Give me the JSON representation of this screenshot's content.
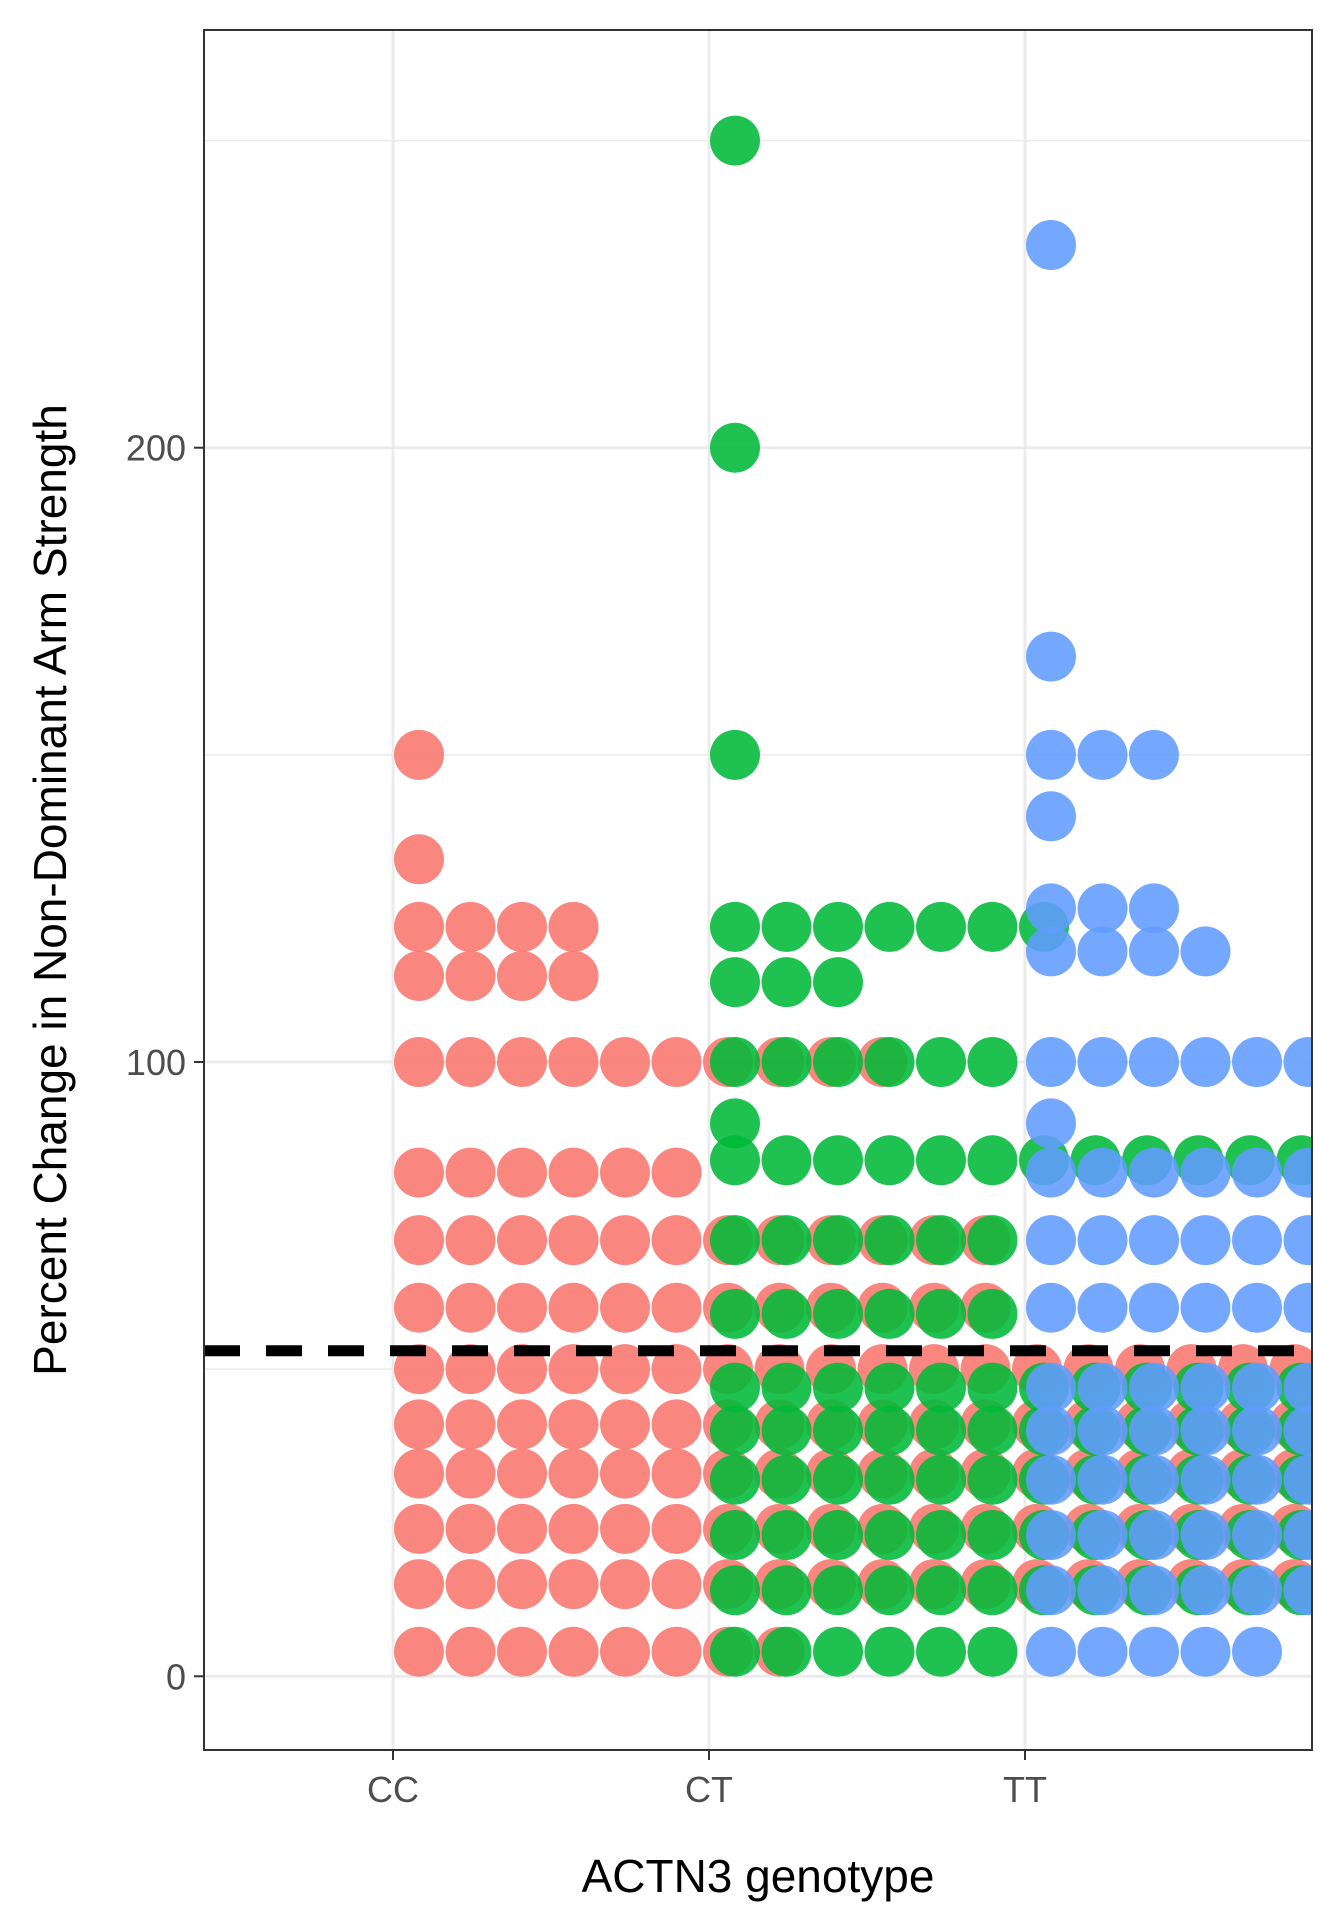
{
  "chart_data": {
    "type": "scatter",
    "subtype": "dotplot",
    "xlabel": "ACTN3 genotype",
    "ylabel": "Percent Change in Non-Dominant Arm Strength",
    "categories": [
      "CC",
      "CT",
      "TT"
    ],
    "yticks": [
      0,
      100,
      200
    ],
    "ylim": [
      -12,
      268
    ],
    "grid": true,
    "reference_line": {
      "y": 53,
      "style": "dashed",
      "color": "#000000"
    },
    "dot_colors": {
      "CC": "#f8766d",
      "CT": "#00ba38",
      "TT": "#619cff"
    },
    "dot_opacity": 0.88,
    "series": [
      {
        "group": "CC",
        "color": "#f8766d",
        "rows": [
          {
            "y": 150,
            "count": 1
          },
          {
            "y": 133,
            "count": 1
          },
          {
            "y": 122,
            "count": 4
          },
          {
            "y": 114,
            "count": 4
          },
          {
            "y": 100,
            "count": 10
          },
          {
            "y": 82,
            "count": 6
          },
          {
            "y": 71,
            "count": 12
          },
          {
            "y": 60,
            "count": 12
          },
          {
            "y": 50,
            "count": 18
          },
          {
            "y": 41,
            "count": 18
          },
          {
            "y": 33,
            "count": 18
          },
          {
            "y": 24,
            "count": 18
          },
          {
            "y": 15,
            "count": 18
          },
          {
            "y": 4,
            "count": 8
          }
        ]
      },
      {
        "group": "CT",
        "color": "#00ba38",
        "rows": [
          {
            "y": 250,
            "count": 1
          },
          {
            "y": 200,
            "count": 1
          },
          {
            "y": 150,
            "count": 1
          },
          {
            "y": 122,
            "count": 7
          },
          {
            "y": 113,
            "count": 3
          },
          {
            "y": 100,
            "count": 6
          },
          {
            "y": 90,
            "count": 1
          },
          {
            "y": 84,
            "count": 12
          },
          {
            "y": 71,
            "count": 6
          },
          {
            "y": 59,
            "count": 6
          },
          {
            "y": 47,
            "count": 12
          },
          {
            "y": 40,
            "count": 12
          },
          {
            "y": 32,
            "count": 12
          },
          {
            "y": 23,
            "count": 12
          },
          {
            "y": 14,
            "count": 12
          },
          {
            "y": 4,
            "count": 6
          }
        ]
      },
      {
        "group": "TT",
        "color": "#619cff",
        "rows": [
          {
            "y": 233,
            "count": 1
          },
          {
            "y": 166,
            "count": 1
          },
          {
            "y": 150,
            "count": 3
          },
          {
            "y": 140,
            "count": 1
          },
          {
            "y": 125,
            "count": 3
          },
          {
            "y": 118,
            "count": 4
          },
          {
            "y": 100,
            "count": 6
          },
          {
            "y": 90,
            "count": 1
          },
          {
            "y": 82,
            "count": 6
          },
          {
            "y": 71,
            "count": 6
          },
          {
            "y": 60,
            "count": 6
          },
          {
            "y": 47,
            "count": 6
          },
          {
            "y": 40,
            "count": 6
          },
          {
            "y": 32,
            "count": 6
          },
          {
            "y": 23,
            "count": 6
          },
          {
            "y": 14,
            "count": 6
          },
          {
            "y": 4,
            "count": 5
          }
        ]
      }
    ]
  }
}
